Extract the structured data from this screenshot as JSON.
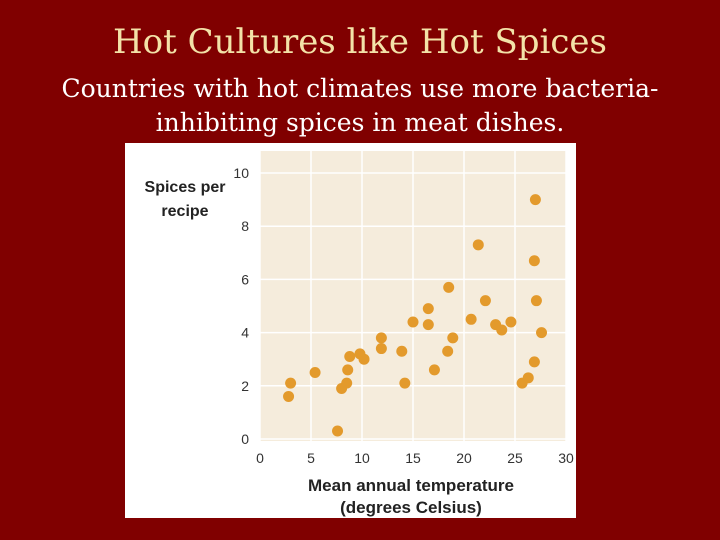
{
  "slide": {
    "title": "Hot Cultures like Hot Spices",
    "subtitle_line1": "Countries with hot climates use more bacteria-",
    "subtitle_line2": "inhibiting spices in meat dishes."
  },
  "colors": {
    "background": "#800000",
    "title": "#f3e2a8",
    "subtitle": "#ffffff",
    "plot_area": "#f5ecdc",
    "point": "#e39a2c"
  },
  "chart_data": {
    "type": "scatter",
    "title": "",
    "ylabel_line1": "Spices per",
    "ylabel_line2": "recipe",
    "xlabel_line1": "Mean annual temperature",
    "xlabel_line2": "(degrees Celsius)",
    "xlim": [
      0,
      30
    ],
    "ylim": [
      0,
      10
    ],
    "xticks": [
      0,
      5,
      10,
      15,
      20,
      25,
      30
    ],
    "yticks": [
      0,
      2,
      4,
      6,
      8,
      10
    ],
    "grid": true,
    "legend": "none",
    "points": [
      {
        "x": 2.8,
        "y": 1.6
      },
      {
        "x": 3.0,
        "y": 2.1
      },
      {
        "x": 5.4,
        "y": 2.5
      },
      {
        "x": 7.6,
        "y": 0.3
      },
      {
        "x": 8.0,
        "y": 1.9
      },
      {
        "x": 8.5,
        "y": 2.1
      },
      {
        "x": 8.6,
        "y": 2.6
      },
      {
        "x": 8.8,
        "y": 3.1
      },
      {
        "x": 9.8,
        "y": 3.2
      },
      {
        "x": 10.2,
        "y": 3.0
      },
      {
        "x": 11.9,
        "y": 3.4
      },
      {
        "x": 11.9,
        "y": 3.8
      },
      {
        "x": 13.9,
        "y": 3.3
      },
      {
        "x": 14.2,
        "y": 2.1
      },
      {
        "x": 15.0,
        "y": 4.4
      },
      {
        "x": 16.5,
        "y": 4.3
      },
      {
        "x": 16.5,
        "y": 4.9
      },
      {
        "x": 17.1,
        "y": 2.6
      },
      {
        "x": 18.4,
        "y": 3.3
      },
      {
        "x": 18.5,
        "y": 5.7
      },
      {
        "x": 18.9,
        "y": 3.8
      },
      {
        "x": 20.7,
        "y": 4.5
      },
      {
        "x": 21.4,
        "y": 7.3
      },
      {
        "x": 22.1,
        "y": 5.2
      },
      {
        "x": 23.1,
        "y": 4.3
      },
      {
        "x": 23.7,
        "y": 4.1
      },
      {
        "x": 24.6,
        "y": 4.4
      },
      {
        "x": 25.7,
        "y": 2.1
      },
      {
        "x": 26.3,
        "y": 2.3
      },
      {
        "x": 26.9,
        "y": 2.9
      },
      {
        "x": 26.9,
        "y": 6.7
      },
      {
        "x": 27.0,
        "y": 9.0
      },
      {
        "x": 27.1,
        "y": 5.2
      },
      {
        "x": 27.6,
        "y": 4.0
      }
    ]
  }
}
